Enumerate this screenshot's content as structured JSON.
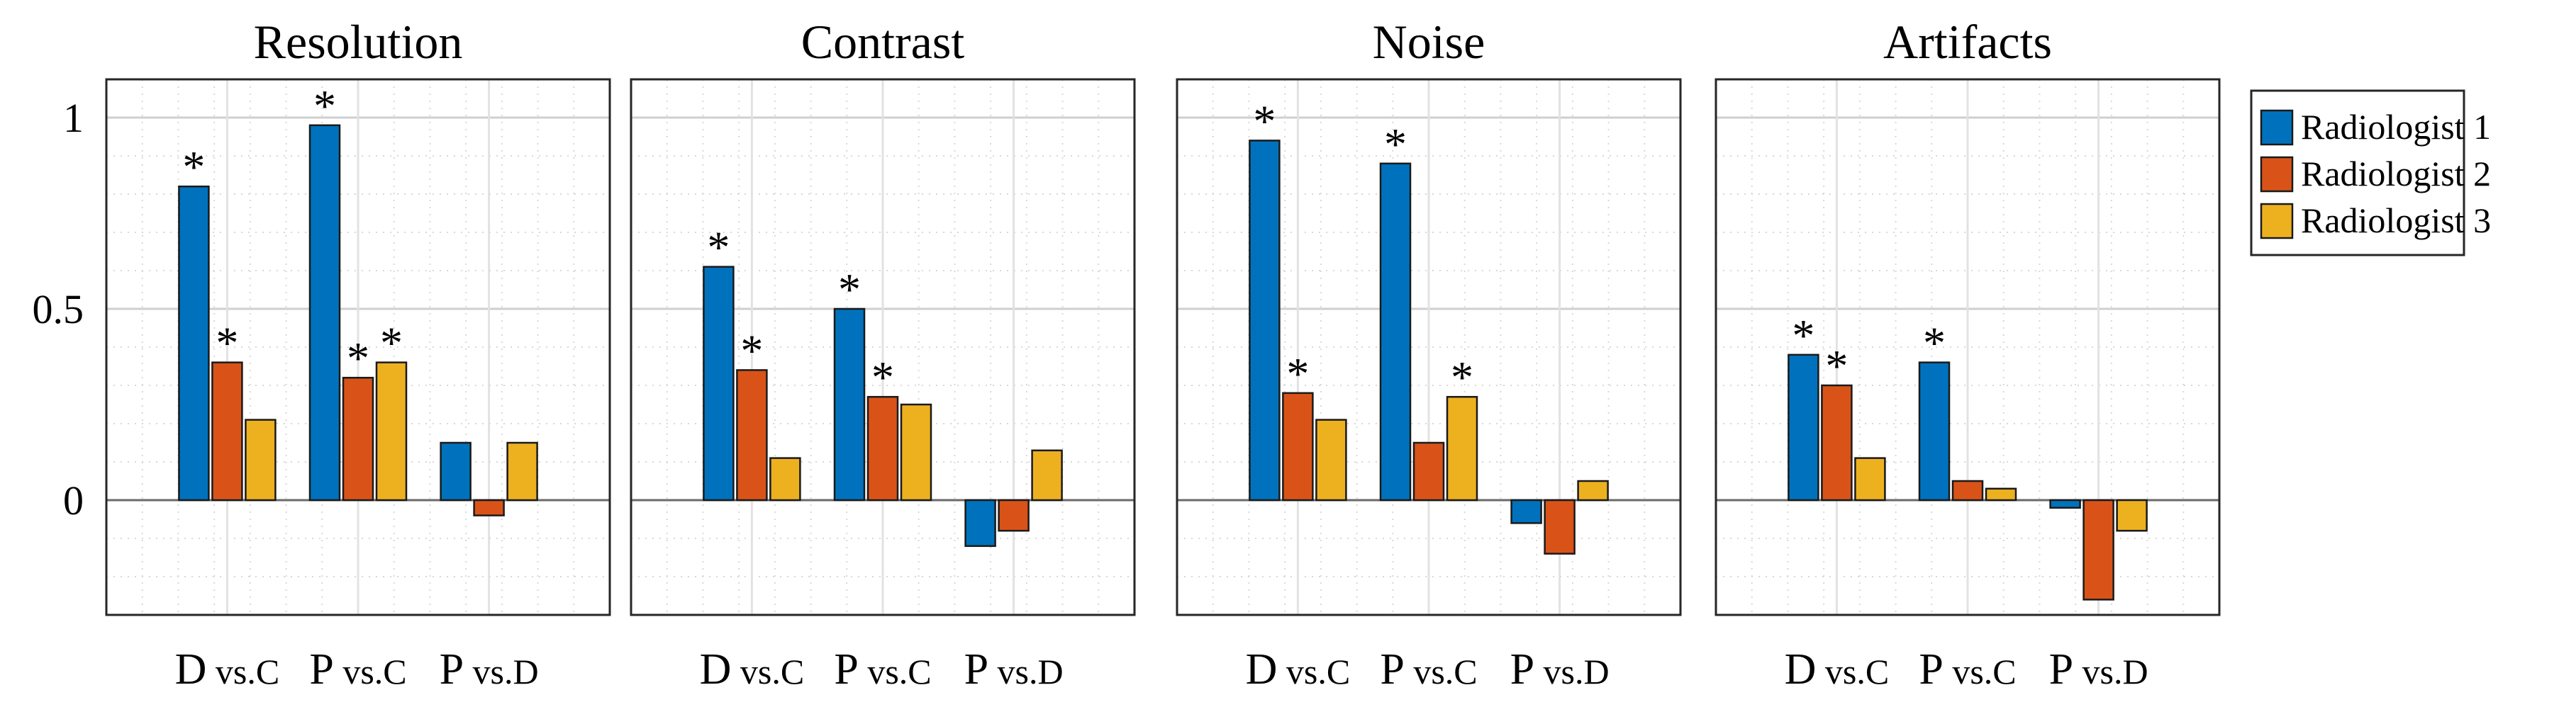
{
  "chart_data": {
    "type": "bar",
    "ylim": [
      -0.3,
      1.1
    ],
    "yticks": [
      0,
      0.5,
      1
    ],
    "ytick_labels": [
      "0",
      "0.5",
      "1"
    ],
    "grid": true,
    "legend": {
      "placement": "right",
      "entries": [
        {
          "name": "Radiologist 1",
          "color": "#0072BD"
        },
        {
          "name": "Radiologist 2",
          "color": "#D95319"
        },
        {
          "name": "Radiologist 3",
          "color": "#EDB120"
        }
      ]
    },
    "significance_marker": "*",
    "panels": [
      {
        "title": "Resolution",
        "categories": [
          {
            "prefix": "D",
            "suffix": " vs.C"
          },
          {
            "prefix": "P",
            "suffix": " vs.C"
          },
          {
            "prefix": "P",
            "suffix": " vs.D"
          }
        ],
        "series": [
          {
            "name": "Radiologist 1",
            "values": [
              0.82,
              0.98,
              0.15
            ],
            "significant": [
              true,
              true,
              false
            ]
          },
          {
            "name": "Radiologist 2",
            "values": [
              0.36,
              0.32,
              -0.04
            ],
            "significant": [
              true,
              true,
              false
            ]
          },
          {
            "name": "Radiologist 3",
            "values": [
              0.21,
              0.36,
              0.15
            ],
            "significant": [
              false,
              true,
              false
            ]
          }
        ]
      },
      {
        "title": "Contrast",
        "categories": [
          {
            "prefix": "D",
            "suffix": " vs.C"
          },
          {
            "prefix": "P",
            "suffix": " vs.C"
          },
          {
            "prefix": "P",
            "suffix": " vs.D"
          }
        ],
        "series": [
          {
            "name": "Radiologist 1",
            "values": [
              0.61,
              0.5,
              -0.12
            ],
            "significant": [
              true,
              true,
              false
            ]
          },
          {
            "name": "Radiologist 2",
            "values": [
              0.34,
              0.27,
              -0.08
            ],
            "significant": [
              true,
              true,
              false
            ]
          },
          {
            "name": "Radiologist 3",
            "values": [
              0.11,
              0.25,
              0.13
            ],
            "significant": [
              false,
              false,
              false
            ]
          }
        ]
      },
      {
        "title": "Noise",
        "categories": [
          {
            "prefix": "D",
            "suffix": " vs.C"
          },
          {
            "prefix": "P",
            "suffix": " vs.C"
          },
          {
            "prefix": "P",
            "suffix": " vs.D"
          }
        ],
        "series": [
          {
            "name": "Radiologist 1",
            "values": [
              0.94,
              0.88,
              -0.06
            ],
            "significant": [
              true,
              true,
              false
            ]
          },
          {
            "name": "Radiologist 2",
            "values": [
              0.28,
              0.15,
              -0.14
            ],
            "significant": [
              true,
              false,
              false
            ]
          },
          {
            "name": "Radiologist 3",
            "values": [
              0.21,
              0.27,
              0.05
            ],
            "significant": [
              false,
              true,
              false
            ]
          }
        ]
      },
      {
        "title": "Artifacts",
        "categories": [
          {
            "prefix": "D",
            "suffix": " vs.C"
          },
          {
            "prefix": "P",
            "suffix": " vs.C"
          },
          {
            "prefix": "P",
            "suffix": " vs.D"
          }
        ],
        "series": [
          {
            "name": "Radiologist 1",
            "values": [
              0.38,
              0.36,
              -0.02
            ],
            "significant": [
              true,
              true,
              false
            ]
          },
          {
            "name": "Radiologist 2",
            "values": [
              0.3,
              0.05,
              -0.26
            ],
            "significant": [
              true,
              false,
              false
            ]
          },
          {
            "name": "Radiologist 3",
            "values": [
              0.11,
              0.03,
              -0.08
            ],
            "significant": [
              false,
              false,
              false
            ]
          }
        ]
      }
    ]
  }
}
